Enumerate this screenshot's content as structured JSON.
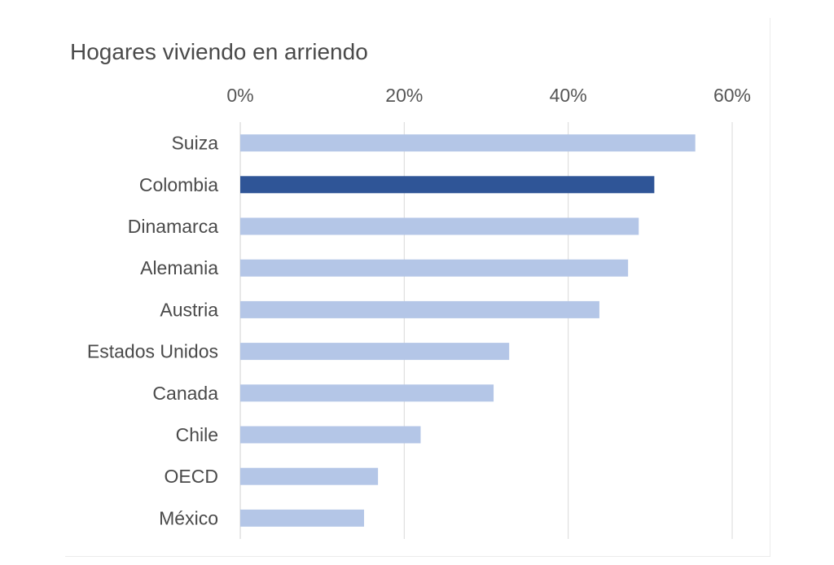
{
  "chart_data": {
    "type": "bar",
    "orientation": "horizontal",
    "title": "Hogares viviendo en arriendo",
    "xlabel": "",
    "ylabel": "",
    "categories": [
      "Suiza",
      "Colombia",
      "Dinamarca",
      "Alemania",
      "Austria",
      "Estados Unidos",
      "Canada",
      "Chile",
      "OECD",
      "México"
    ],
    "values": [
      55.5,
      50.5,
      48.6,
      47.3,
      43.8,
      32.8,
      30.9,
      22.0,
      16.8,
      15.1
    ],
    "xlim": [
      0,
      60
    ],
    "xticks": [
      "0%",
      "20%",
      "40%",
      "60%"
    ],
    "xtick_values": [
      0,
      20,
      40,
      60
    ],
    "tick_position": "top",
    "grid": true,
    "legend": "none",
    "highlight_category": "Colombia",
    "colors": {
      "bar": "#b4c6e7",
      "highlight": "#2f5597",
      "grid": "#d9d9d9",
      "axis": "#d0d0d0"
    }
  }
}
